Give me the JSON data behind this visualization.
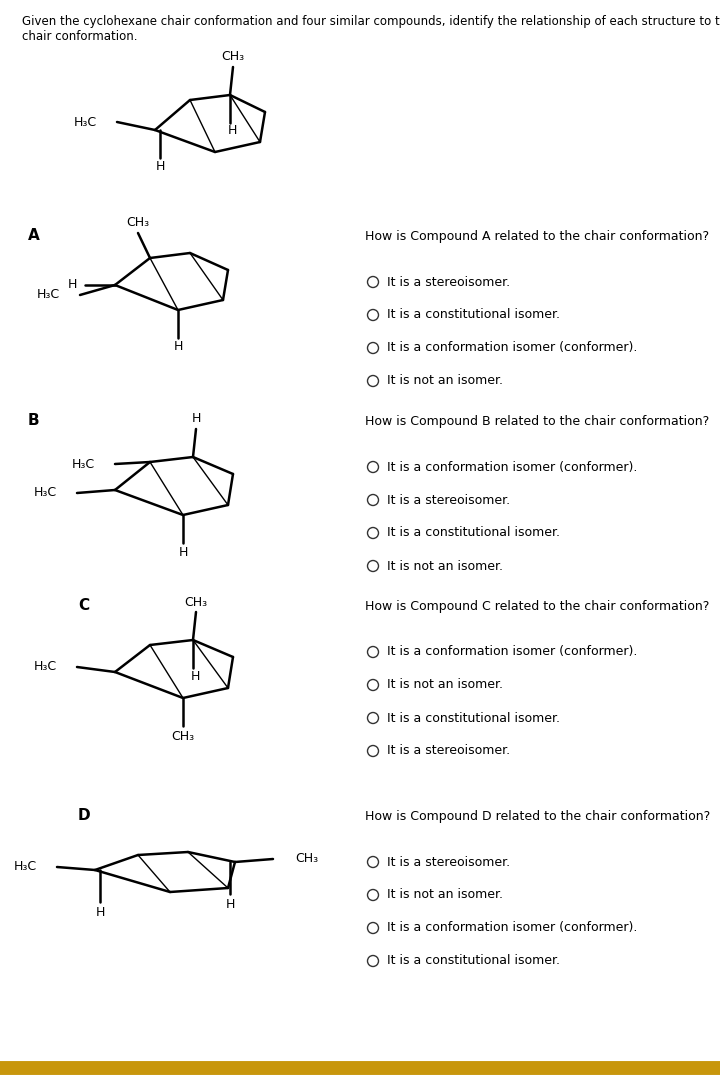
{
  "title_text": "Given the cyclohexane chair conformation and four similar compounds, identify the relationship of each structure to the\nchair conformation.",
  "bg_color": "#ffffff",
  "text_color": "#000000",
  "bottom_bar_color": "#c8960c",
  "sections": [
    {
      "label": "A",
      "question": "How is Compound A related to the chair conformation?",
      "options": [
        "It is a stereoisomer.",
        "It is a constitutional isomer.",
        "It is a conformation isomer (conformer).",
        "It is not an isomer."
      ]
    },
    {
      "label": "B",
      "question": "How is Compound B related to the chair conformation?",
      "options": [
        "It is a conformation isomer (conformer).",
        "It is a stereoisomer.",
        "It is a constitutional isomer.",
        "It is not an isomer."
      ]
    },
    {
      "label": "C",
      "question": "How is Compound C related to the chair conformation?",
      "options": [
        "It is a conformation isomer (conformer).",
        "It is not an isomer.",
        "It is a constitutional isomer.",
        "It is a stereoisomer."
      ]
    },
    {
      "label": "D",
      "question": "How is Compound D related to the chair conformation?",
      "options": [
        "It is a stereoisomer.",
        "It is not an isomer.",
        "It is a conformation isomer (conformer).",
        "It is a constitutional isomer."
      ]
    }
  ]
}
